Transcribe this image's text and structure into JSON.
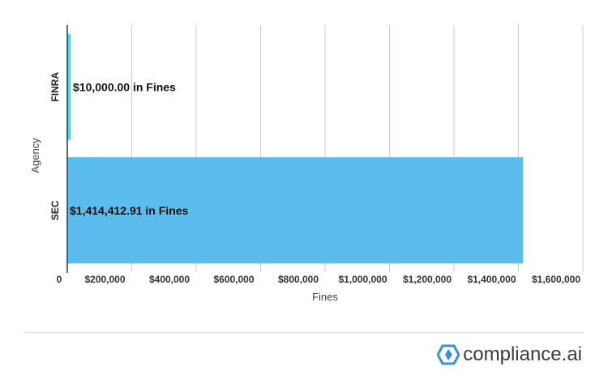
{
  "chart_data": {
    "type": "bar",
    "orientation": "horizontal",
    "categories": [
      "FINRA",
      "SEC"
    ],
    "values": [
      10000.0,
      1414412.91
    ],
    "colors": [
      "#4dd9e0",
      "#5bbcee"
    ],
    "data_labels": [
      "$10,000.00 in Fines",
      "$1,414,412.91 in Fines"
    ],
    "xlabel": "Fines",
    "ylabel": "Agency",
    "xlim": [
      0,
      1600000
    ],
    "x_ticks": [
      0,
      200000,
      400000,
      600000,
      800000,
      1000000,
      1200000,
      1400000,
      1600000
    ],
    "x_tick_labels": [
      "0",
      "$200,000",
      "$400,000",
      "$600,000",
      "$800,000",
      "$1,000,000",
      "$1,200,000",
      "$1,400,000",
      "$1,600,000"
    ],
    "grid": true
  },
  "brand": {
    "name": "compliance.ai",
    "accent": "#3a8fd6"
  }
}
